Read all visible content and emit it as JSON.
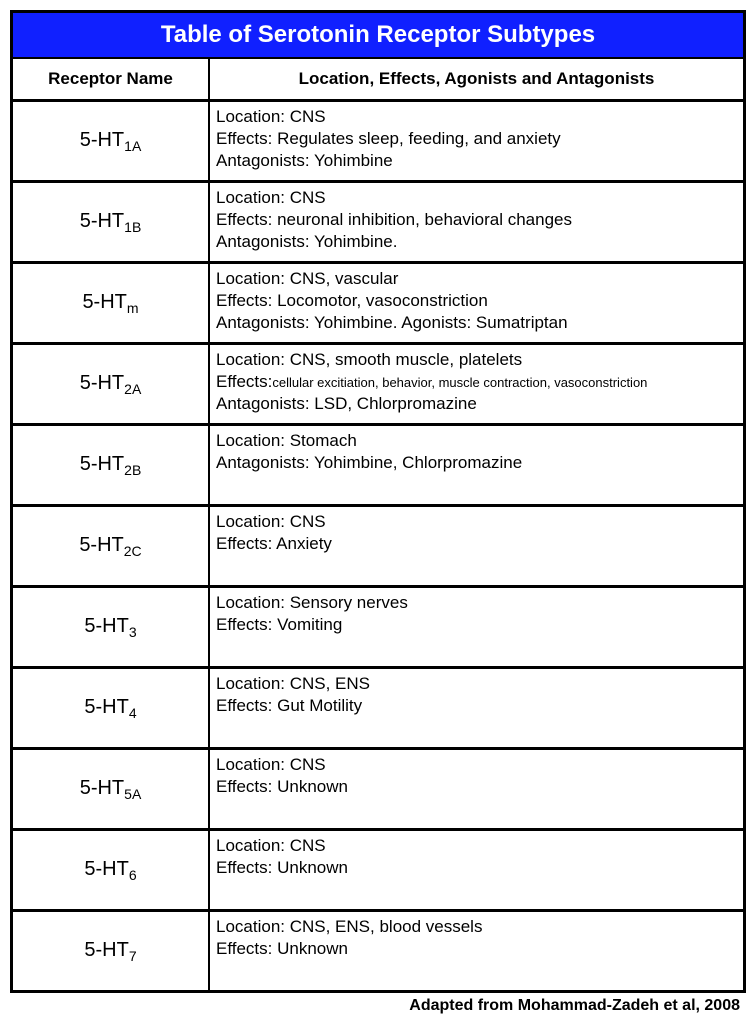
{
  "title": "Table of Serotonin Receptor Subtypes",
  "columns": {
    "name": "Receptor Name",
    "detail": "Location, Effects, Agonists and Antagonists"
  },
  "rows": [
    {
      "name_base": "5-HT",
      "name_sub": "1A",
      "lines": [
        "Location: CNS",
        "Effects: Regulates sleep, feeding, and anxiety",
        "Antagonists: Yohimbine"
      ]
    },
    {
      "name_base": "5-HT",
      "name_sub": "1B",
      "lines": [
        "Location: CNS",
        "Effects: neuronal inhibition, behavioral changes",
        "Antagonists: Yohimbine."
      ]
    },
    {
      "name_base": "5-HT",
      "name_sub": "m",
      "lines": [
        "Location: CNS, vascular",
        "Effects: Locomotor, vasoconstriction",
        "Antagonists: Yohimbine. Agonists: Sumatriptan"
      ]
    },
    {
      "name_base": "5-HT",
      "name_sub": "2A",
      "lines": [
        "Location: CNS, smooth muscle, platelets",
        {
          "prefix": "Effects:",
          "small": "cellular excitiation, behavior, muscle contraction, vasoconstriction"
        },
        "Antagonists: LSD, Chlorpromazine"
      ]
    },
    {
      "name_base": "5-HT",
      "name_sub": "2B",
      "lines": [
        "Location: Stomach",
        "Antagonists: Yohimbine, Chlorpromazine"
      ]
    },
    {
      "name_base": "5-HT",
      "name_sub": "2C",
      "lines": [
        "Location: CNS",
        "Effects: Anxiety"
      ]
    },
    {
      "name_base": "5-HT",
      "name_sub": "3",
      "lines": [
        "Location: Sensory nerves",
        "Effects: Vomiting"
      ]
    },
    {
      "name_base": "5-HT",
      "name_sub": "4",
      "lines": [
        "Location: CNS, ENS",
        "Effects: Gut Motility"
      ]
    },
    {
      "name_base": "5-HT",
      "name_sub": "5A",
      "lines": [
        "Location: CNS",
        "Effects: Unknown"
      ]
    },
    {
      "name_base": "5-HT",
      "name_sub": "6",
      "lines": [
        "Location: CNS",
        "Effects: Unknown"
      ]
    },
    {
      "name_base": "5-HT",
      "name_sub": "7",
      "lines": [
        "Location: CNS, ENS, blood vessels",
        "Effects: Unknown"
      ]
    }
  ],
  "citation": "Adapted from Mohammad-Zadeh et al, 2008",
  "colors": {
    "title_bg": "#1020ff",
    "title_fg": "#ffffff",
    "border": "#000000",
    "bg": "#ffffff"
  }
}
